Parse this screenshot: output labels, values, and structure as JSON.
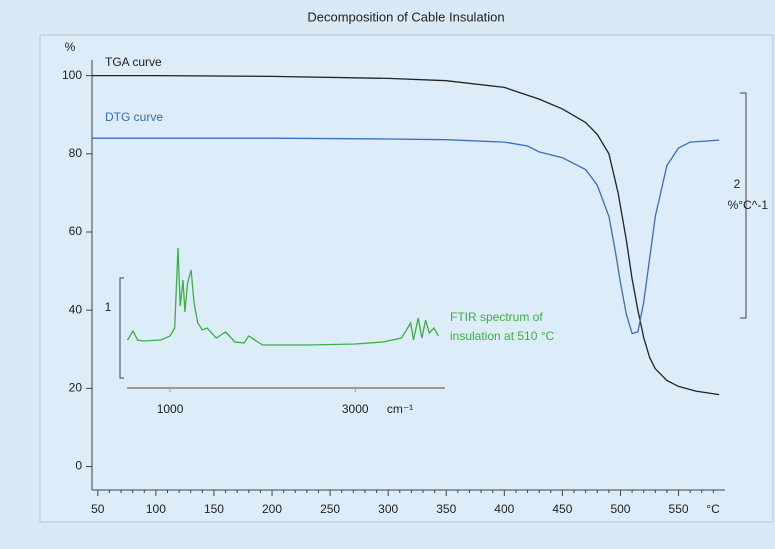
{
  "chart_data": {
    "type": "line",
    "title": "Decomposition of Cable Insulation",
    "y_label": "%",
    "x_label": "°C",
    "xlim": [
      45,
      590
    ],
    "ylim": [
      -6,
      104
    ],
    "xticks": [
      50,
      100,
      150,
      200,
      250,
      300,
      350,
      400,
      450,
      500,
      550
    ],
    "xminorticks": [
      60,
      70,
      80,
      90,
      110,
      120,
      130,
      140,
      160,
      170,
      180,
      190,
      210,
      220,
      230,
      240,
      260,
      270,
      280,
      290,
      310,
      320,
      330,
      340,
      360,
      370,
      380,
      390,
      410,
      420,
      430,
      440,
      460,
      470,
      480,
      490,
      510,
      520,
      530,
      540,
      560,
      570,
      580
    ],
    "yticks": [
      0,
      20,
      40,
      60,
      80,
      100
    ],
    "series": [
      {
        "name": "TGA curve",
        "color": "#222222",
        "x": [
          45,
          100,
          200,
          300,
          350,
          400,
          430,
          450,
          470,
          480,
          490,
          498,
          505,
          510,
          515,
          520,
          525,
          530,
          540,
          550,
          565,
          585
        ],
        "values": [
          100,
          100,
          99.8,
          99.3,
          98.7,
          97,
          94,
          91.5,
          88,
          85,
          80,
          70,
          58,
          48,
          40,
          33,
          28,
          25,
          22,
          20.5,
          19.3,
          18.4
        ]
      },
      {
        "name": "DTG curve",
        "color": "#3a6cc0",
        "x": [
          45,
          100,
          200,
          300,
          350,
          400,
          420,
          430,
          450,
          470,
          480,
          490,
          495,
          500,
          505,
          510,
          515,
          520,
          525,
          530,
          540,
          550,
          560,
          585
        ],
        "values": [
          84,
          84,
          84,
          83.8,
          83.6,
          83,
          82,
          80.5,
          79,
          76,
          72,
          64,
          56,
          47,
          39,
          34,
          34.5,
          42,
          53,
          64,
          77,
          81.5,
          83,
          83.5
        ]
      }
    ],
    "dtg_scale_label": 2,
    "dtg_scale_unit": "%°C^-1",
    "inset": {
      "type": "line",
      "annotation": [
        "FTIR spectrum of",
        "insulation at 510 °C"
      ],
      "color": "#3cb043",
      "x_label": "cm⁻¹",
      "xlim": [
        535,
        3970
      ],
      "ylim": [
        0,
        1.3
      ],
      "xticks": [
        1000,
        3000
      ],
      "scale_bar": 1,
      "x": [
        540,
        600,
        650,
        700,
        900,
        1000,
        1050,
        1086,
        1110,
        1140,
        1160,
        1190,
        1227,
        1260,
        1300,
        1350,
        1400,
        1500,
        1600,
        1700,
        1800,
        1850,
        2000,
        2500,
        3000,
        3300,
        3500,
        3600,
        3630,
        3680,
        3720,
        3760,
        3800,
        3850,
        3900
      ],
      "values": [
        0.38,
        0.47,
        0.38,
        0.37,
        0.38,
        0.42,
        0.5,
        1.3,
        0.72,
        0.98,
        0.66,
        0.95,
        1.08,
        0.75,
        0.55,
        0.48,
        0.5,
        0.4,
        0.46,
        0.36,
        0.35,
        0.42,
        0.33,
        0.33,
        0.34,
        0.36,
        0.4,
        0.55,
        0.38,
        0.6,
        0.4,
        0.58,
        0.45,
        0.5,
        0.42
      ]
    }
  }
}
